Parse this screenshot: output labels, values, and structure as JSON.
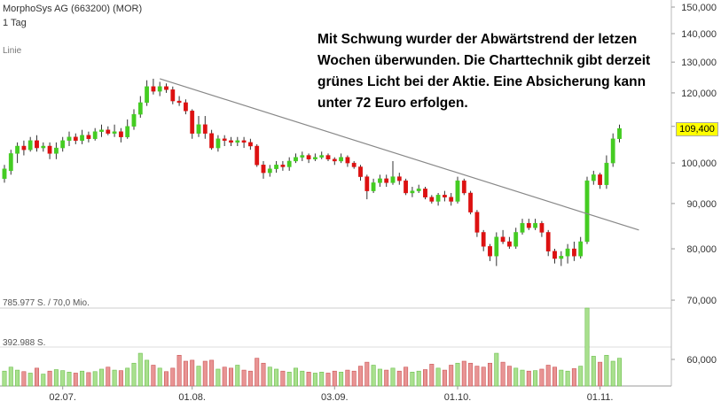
{
  "header": {
    "title": "MorphoSys AG (663200) (MOR)",
    "interval": "1 Tag",
    "chart_mode": "Linie"
  },
  "annotation": "Mit Schwung wurder der Abwärtstrend der letzen Wochen überwunden. Die Charttechnik gibt derzeit grünes Licht bei der Aktie. Eine Absicherung kann unter 72 Euro erfolgen.",
  "last_price": "109,400",
  "volume_labels": {
    "max": "785.977 S. / 70,0 Mio.",
    "mid": "392.988 S."
  },
  "colors": {
    "up": "#44cc22",
    "down": "#dd1111",
    "up_vol": "#a9e08e",
    "down_vol": "#e89494",
    "trendline": "#888888",
    "last_price_bg": "#ffff00"
  },
  "chart_data": {
    "type": "candlestick",
    "price_axis": {
      "ticks": [
        150000,
        140000,
        130000,
        120000,
        110000,
        100000,
        90000,
        80000,
        70000,
        60000
      ],
      "tick_labels": [
        "150,000",
        "140,000",
        "130,000",
        "120,000",
        "110,000",
        "100,000",
        "90,000",
        "80,000",
        "70,000",
        "60,000"
      ],
      "ylim": [
        58000,
        150000
      ],
      "scale": "log"
    },
    "x_labels": [
      {
        "label": "02.07.",
        "index": 9
      },
      {
        "label": "01.08.",
        "index": 29
      },
      {
        "label": "03.09.",
        "index": 51
      },
      {
        "label": "01.10.",
        "index": 70
      },
      {
        "label": "01.11.",
        "index": 92
      }
    ],
    "trendline": {
      "from": {
        "index": 24,
        "value": 124500
      },
      "to": {
        "index": 98,
        "value": 84000
      }
    },
    "volume_max": 785977,
    "candles": [
      {
        "o": 96000,
        "c": 98500,
        "h": 99500,
        "l": 95000,
        "v": 150000
      },
      {
        "o": 98000,
        "c": 102500,
        "h": 103500,
        "l": 97000,
        "v": 190000
      },
      {
        "o": 102500,
        "c": 104500,
        "h": 105500,
        "l": 100000,
        "v": 160000
      },
      {
        "o": 104500,
        "c": 103500,
        "h": 106000,
        "l": 102000,
        "v": 145000
      },
      {
        "o": 103500,
        "c": 106000,
        "h": 107000,
        "l": 103000,
        "v": 130000
      },
      {
        "o": 106000,
        "c": 104000,
        "h": 107500,
        "l": 103000,
        "v": 180000
      },
      {
        "o": 104000,
        "c": 104500,
        "h": 105500,
        "l": 103000,
        "v": 120000
      },
      {
        "o": 104500,
        "c": 102500,
        "h": 105500,
        "l": 101000,
        "v": 150000
      },
      {
        "o": 102500,
        "c": 104000,
        "h": 105500,
        "l": 101000,
        "v": 165000
      },
      {
        "o": 104000,
        "c": 106000,
        "h": 107000,
        "l": 103000,
        "v": 155000
      },
      {
        "o": 106000,
        "c": 107000,
        "h": 108500,
        "l": 104500,
        "v": 140000
      },
      {
        "o": 107000,
        "c": 106000,
        "h": 108000,
        "l": 105000,
        "v": 130000
      },
      {
        "o": 106000,
        "c": 107500,
        "h": 109000,
        "l": 105000,
        "v": 150000
      },
      {
        "o": 107500,
        "c": 106500,
        "h": 108500,
        "l": 105500,
        "v": 135000
      },
      {
        "o": 106500,
        "c": 108500,
        "h": 109500,
        "l": 106000,
        "v": 145000
      },
      {
        "o": 108500,
        "c": 109000,
        "h": 110500,
        "l": 107000,
        "v": 170000
      },
      {
        "o": 109000,
        "c": 108000,
        "h": 110000,
        "l": 107500,
        "v": 190000
      },
      {
        "o": 108000,
        "c": 108500,
        "h": 110500,
        "l": 107000,
        "v": 160000
      },
      {
        "o": 108500,
        "c": 107000,
        "h": 109500,
        "l": 105500,
        "v": 155000
      },
      {
        "o": 107000,
        "c": 110000,
        "h": 112000,
        "l": 106500,
        "v": 180000
      },
      {
        "o": 110000,
        "c": 113500,
        "h": 115000,
        "l": 109000,
        "v": 230000
      },
      {
        "o": 113500,
        "c": 117000,
        "h": 119000,
        "l": 112500,
        "v": 330000
      },
      {
        "o": 117000,
        "c": 122000,
        "h": 124000,
        "l": 116000,
        "v": 260000
      },
      {
        "o": 122000,
        "c": 120500,
        "h": 124500,
        "l": 119500,
        "v": 210000
      },
      {
        "o": 120500,
        "c": 122000,
        "h": 123500,
        "l": 119000,
        "v": 180000
      },
      {
        "o": 122000,
        "c": 121000,
        "h": 123000,
        "l": 120000,
        "v": 145000
      },
      {
        "o": 121000,
        "c": 117500,
        "h": 122000,
        "l": 116500,
        "v": 180000
      },
      {
        "o": 117500,
        "c": 117000,
        "h": 119000,
        "l": 116000,
        "v": 310000
      },
      {
        "o": 117000,
        "c": 114500,
        "h": 118000,
        "l": 113500,
        "v": 250000
      },
      {
        "o": 114500,
        "c": 108000,
        "h": 115000,
        "l": 106500,
        "v": 260000
      },
      {
        "o": 108000,
        "c": 110500,
        "h": 113000,
        "l": 107000,
        "v": 200000
      },
      {
        "o": 110500,
        "c": 108000,
        "h": 113000,
        "l": 106500,
        "v": 250000
      },
      {
        "o": 108000,
        "c": 104000,
        "h": 109000,
        "l": 103500,
        "v": 260000
      },
      {
        "o": 104000,
        "c": 106500,
        "h": 107500,
        "l": 103000,
        "v": 170000
      },
      {
        "o": 106500,
        "c": 106000,
        "h": 107500,
        "l": 104500,
        "v": 190000
      },
      {
        "o": 106000,
        "c": 105500,
        "h": 107000,
        "l": 104500,
        "v": 180000
      },
      {
        "o": 105500,
        "c": 106000,
        "h": 107000,
        "l": 104500,
        "v": 210000
      },
      {
        "o": 106000,
        "c": 105500,
        "h": 107000,
        "l": 104000,
        "v": 160000
      },
      {
        "o": 105500,
        "c": 104500,
        "h": 106500,
        "l": 103500,
        "v": 150000
      },
      {
        "o": 104500,
        "c": 99500,
        "h": 105000,
        "l": 99000,
        "v": 280000
      },
      {
        "o": 99500,
        "c": 97500,
        "h": 100500,
        "l": 96000,
        "v": 230000
      },
      {
        "o": 97500,
        "c": 98500,
        "h": 99500,
        "l": 96500,
        "v": 190000
      },
      {
        "o": 98500,
        "c": 99500,
        "h": 100500,
        "l": 97500,
        "v": 170000
      },
      {
        "o": 99500,
        "c": 99000,
        "h": 100500,
        "l": 98000,
        "v": 150000
      },
      {
        "o": 99000,
        "c": 100500,
        "h": 101500,
        "l": 98000,
        "v": 140000
      },
      {
        "o": 100500,
        "c": 101500,
        "h": 102500,
        "l": 100000,
        "v": 180000
      },
      {
        "o": 101500,
        "c": 102000,
        "h": 103000,
        "l": 100500,
        "v": 150000
      },
      {
        "o": 102000,
        "c": 101000,
        "h": 102500,
        "l": 100000,
        "v": 140000
      },
      {
        "o": 101000,
        "c": 101500,
        "h": 102500,
        "l": 100500,
        "v": 130000
      },
      {
        "o": 101500,
        "c": 102000,
        "h": 103000,
        "l": 101000,
        "v": 140000
      },
      {
        "o": 102000,
        "c": 101000,
        "h": 102500,
        "l": 100500,
        "v": 130000
      },
      {
        "o": 101000,
        "c": 100500,
        "h": 101500,
        "l": 99500,
        "v": 150000
      },
      {
        "o": 100500,
        "c": 101500,
        "h": 102500,
        "l": 100000,
        "v": 140000
      },
      {
        "o": 101500,
        "c": 100000,
        "h": 102000,
        "l": 99000,
        "v": 160000
      },
      {
        "o": 100000,
        "c": 99000,
        "h": 100500,
        "l": 98500,
        "v": 150000
      },
      {
        "o": 99000,
        "c": 96500,
        "h": 99500,
        "l": 95500,
        "v": 200000
      },
      {
        "o": 96500,
        "c": 93000,
        "h": 97000,
        "l": 91000,
        "v": 240000
      },
      {
        "o": 93000,
        "c": 95000,
        "h": 96000,
        "l": 92500,
        "v": 210000
      },
      {
        "o": 95000,
        "c": 96000,
        "h": 97000,
        "l": 94000,
        "v": 170000
      },
      {
        "o": 96000,
        "c": 95000,
        "h": 97000,
        "l": 94000,
        "v": 160000
      },
      {
        "o": 95000,
        "c": 96500,
        "h": 100500,
        "l": 94500,
        "v": 180000
      },
      {
        "o": 96500,
        "c": 95500,
        "h": 97500,
        "l": 94500,
        "v": 150000
      },
      {
        "o": 95500,
        "c": 92500,
        "h": 96000,
        "l": 92000,
        "v": 190000
      },
      {
        "o": 92500,
        "c": 93000,
        "h": 94000,
        "l": 91500,
        "v": 140000
      },
      {
        "o": 93000,
        "c": 93500,
        "h": 94500,
        "l": 92500,
        "v": 150000
      },
      {
        "o": 93500,
        "c": 91500,
        "h": 94000,
        "l": 91000,
        "v": 165000
      },
      {
        "o": 91500,
        "c": 90500,
        "h": 92000,
        "l": 90000,
        "v": 220000
      },
      {
        "o": 90500,
        "c": 92000,
        "h": 92500,
        "l": 89500,
        "v": 180000
      },
      {
        "o": 92000,
        "c": 91500,
        "h": 93000,
        "l": 90500,
        "v": 160000
      },
      {
        "o": 91500,
        "c": 90500,
        "h": 92500,
        "l": 89500,
        "v": 210000
      },
      {
        "o": 90500,
        "c": 95500,
        "h": 96500,
        "l": 90000,
        "v": 230000
      },
      {
        "o": 95500,
        "c": 92500,
        "h": 96000,
        "l": 92000,
        "v": 250000
      },
      {
        "o": 92500,
        "c": 88000,
        "h": 93000,
        "l": 87500,
        "v": 230000
      },
      {
        "o": 88000,
        "c": 83500,
        "h": 88500,
        "l": 82500,
        "v": 200000
      },
      {
        "o": 83500,
        "c": 80500,
        "h": 84000,
        "l": 79500,
        "v": 190000
      },
      {
        "o": 80500,
        "c": 78500,
        "h": 81000,
        "l": 77500,
        "v": 230000
      },
      {
        "o": 78500,
        "c": 82500,
        "h": 83500,
        "l": 76500,
        "v": 330000
      },
      {
        "o": 82500,
        "c": 81500,
        "h": 84000,
        "l": 81000,
        "v": 240000
      },
      {
        "o": 81500,
        "c": 80500,
        "h": 82500,
        "l": 80000,
        "v": 200000
      },
      {
        "o": 80500,
        "c": 83500,
        "h": 84500,
        "l": 80000,
        "v": 180000
      },
      {
        "o": 83500,
        "c": 85500,
        "h": 86500,
        "l": 83000,
        "v": 160000
      },
      {
        "o": 85500,
        "c": 84500,
        "h": 86500,
        "l": 84000,
        "v": 150000
      },
      {
        "o": 84500,
        "c": 85500,
        "h": 86500,
        "l": 84000,
        "v": 155000
      },
      {
        "o": 85500,
        "c": 83500,
        "h": 86000,
        "l": 82500,
        "v": 170000
      },
      {
        "o": 83500,
        "c": 79500,
        "h": 84000,
        "l": 78500,
        "v": 210000
      },
      {
        "o": 79500,
        "c": 78000,
        "h": 80000,
        "l": 77000,
        "v": 190000
      },
      {
        "o": 78000,
        "c": 78500,
        "h": 79500,
        "l": 76500,
        "v": 160000
      },
      {
        "o": 78500,
        "c": 80000,
        "h": 81000,
        "l": 77000,
        "v": 150000
      },
      {
        "o": 80000,
        "c": 78500,
        "h": 81500,
        "l": 77500,
        "v": 175000
      },
      {
        "o": 78500,
        "c": 81500,
        "h": 82500,
        "l": 78000,
        "v": 200000
      },
      {
        "o": 81500,
        "c": 95500,
        "h": 96500,
        "l": 81000,
        "v": 785977
      },
      {
        "o": 95500,
        "c": 97000,
        "h": 98000,
        "l": 94500,
        "v": 300000
      },
      {
        "o": 97000,
        "c": 94500,
        "h": 97500,
        "l": 93500,
        "v": 240000
      },
      {
        "o": 94500,
        "c": 100000,
        "h": 102000,
        "l": 93500,
        "v": 310000
      },
      {
        "o": 100000,
        "c": 106500,
        "h": 108000,
        "l": 99000,
        "v": 250000
      },
      {
        "o": 106500,
        "c": 109400,
        "h": 110500,
        "l": 105500,
        "v": 280000
      }
    ]
  }
}
